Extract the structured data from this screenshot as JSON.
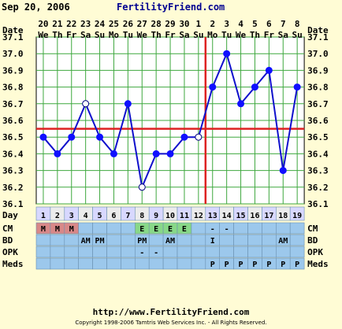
{
  "header": {
    "date": "Sep 20, 2006",
    "site": "FertilityFriend.com"
  },
  "footer": {
    "url": "http://www.FertilityFriend.com",
    "copyright": "Copyright 1998-2006 Tamtris Web Services Inc. - All Rights Reserved."
  },
  "row_labels": {
    "date": "Date",
    "day": "Day",
    "cm": "CM",
    "bd": "BD",
    "opk": "OPK",
    "meds": "Meds"
  },
  "colors": {
    "background": "#fffcd5",
    "plot": "#ffffff",
    "grid": "#3fa83f",
    "line": "#1010cc",
    "marker": "#1010ff",
    "coverline": "#dd2222",
    "ovulation": "#dd2222",
    "day_cell": "#d8d8ff",
    "day_cell_alt": "#ececec",
    "row_cell": "#9cc8ec",
    "cm_m": "#d88888",
    "cm_e": "#88d888"
  },
  "chart_data": {
    "type": "line",
    "title": "",
    "xlabel": "Day",
    "ylabel": "",
    "ylim": [
      36.1,
      37.1
    ],
    "yticks": [
      "36.1",
      "36.2",
      "36.3",
      "36.4",
      "36.5",
      "36.6",
      "36.7",
      "36.8",
      "36.9",
      "37.0",
      "37.1"
    ],
    "grid": true,
    "days": [
      "1",
      "2",
      "3",
      "4",
      "5",
      "6",
      "7",
      "8",
      "9",
      "10",
      "11",
      "12",
      "13",
      "14",
      "15",
      "16",
      "17",
      "18",
      "19"
    ],
    "dates": [
      "20",
      "21",
      "22",
      "23",
      "24",
      "25",
      "26",
      "27",
      "28",
      "29",
      "30",
      "1",
      "2",
      "3",
      "4",
      "5",
      "6",
      "7",
      "8"
    ],
    "weekdays": [
      "We",
      "Th",
      "Fr",
      "Sa",
      "Su",
      "Mo",
      "Tu",
      "We",
      "Th",
      "Fr",
      "Sa",
      "Su",
      "Mo",
      "Tu",
      "We",
      "Th",
      "Fr",
      "Sa",
      "Su"
    ],
    "temperatures": [
      36.5,
      36.4,
      36.5,
      36.7,
      36.5,
      36.4,
      36.7,
      36.2,
      36.4,
      36.4,
      36.5,
      36.5,
      36.8,
      37.0,
      36.7,
      36.8,
      36.9,
      36.3,
      36.8
    ],
    "open_markers": [
      4,
      8,
      12
    ],
    "coverline": 36.55,
    "ovulation_day": 12,
    "cm": [
      "M",
      "M",
      "M",
      "",
      "",
      "",
      "",
      "E",
      "E",
      "E",
      "E",
      "",
      "-",
      "-",
      "",
      "",
      "",
      "",
      ""
    ],
    "bd": [
      "",
      "",
      "",
      "AM",
      "PM",
      "",
      "",
      "PM",
      "",
      "AM",
      "",
      "",
      "I",
      "",
      "",
      "",
      "",
      "AM",
      ""
    ],
    "opk": [
      "",
      "",
      "",
      "",
      "",
      "",
      "",
      "-",
      "-",
      "",
      "",
      "",
      "",
      "",
      "",
      "",
      "",
      "",
      ""
    ],
    "meds": [
      "",
      "",
      "",
      "",
      "",
      "",
      "",
      "",
      "",
      "",
      "",
      "",
      "P",
      "P",
      "P",
      "P",
      "P",
      "P",
      "P"
    ]
  }
}
